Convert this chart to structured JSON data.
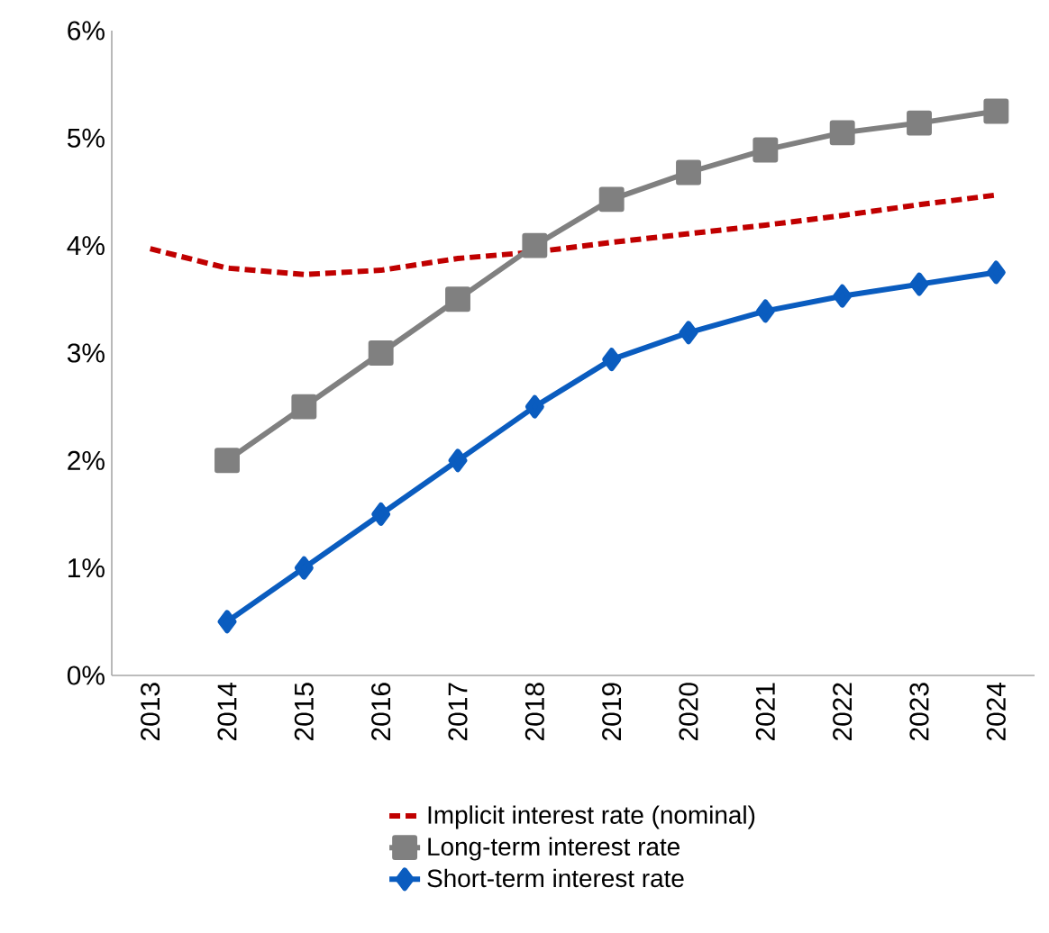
{
  "chart_data": {
    "type": "line",
    "categories": [
      "2013",
      "2014",
      "2015",
      "2016",
      "2017",
      "2018",
      "2019",
      "2020",
      "2021",
      "2022",
      "2023",
      "2024"
    ],
    "series": [
      {
        "name": "Implicit interest rate (nominal)",
        "color": "#c00000",
        "line_style": "dashed",
        "marker": "none",
        "values": [
          3.97,
          3.79,
          3.73,
          3.77,
          3.88,
          3.94,
          4.03,
          4.11,
          4.19,
          4.28,
          4.38,
          4.47
        ]
      },
      {
        "name": "Long-term interest rate",
        "color": "#808080",
        "line_style": "solid",
        "marker": "square",
        "values": [
          null,
          2.0,
          2.5,
          3.0,
          3.5,
          4.0,
          4.43,
          4.68,
          4.89,
          5.05,
          5.14,
          5.25
        ]
      },
      {
        "name": "Short-term interest rate",
        "color": "#0a5cbf",
        "line_style": "solid",
        "marker": "diamond",
        "values": [
          null,
          0.5,
          1.0,
          1.5,
          2.0,
          2.5,
          2.94,
          3.19,
          3.39,
          3.53,
          3.64,
          3.75
        ]
      }
    ],
    "ylim": [
      0,
      6
    ],
    "yticks": [
      {
        "value": 0,
        "label": "0%"
      },
      {
        "value": 1,
        "label": "1%"
      },
      {
        "value": 2,
        "label": "2%"
      },
      {
        "value": 3,
        "label": "3%"
      },
      {
        "value": 4,
        "label": "4%"
      },
      {
        "value": 5,
        "label": "5%"
      },
      {
        "value": 6,
        "label": "6%"
      }
    ],
    "grid": false,
    "legend": "bottom"
  }
}
